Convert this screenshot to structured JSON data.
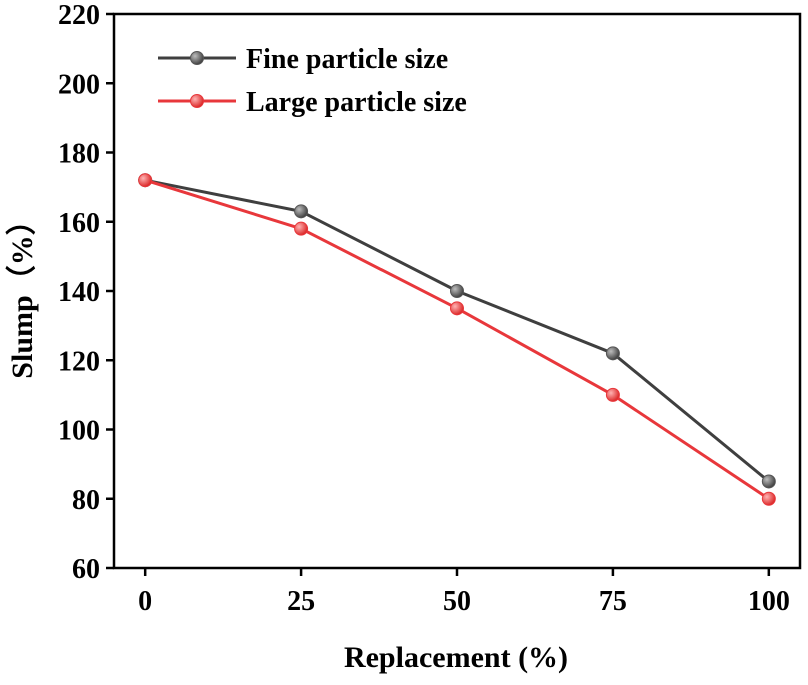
{
  "chart_data": {
    "type": "line",
    "title": "",
    "xlabel": "Replacement (%)",
    "ylabel": "Slump（%）",
    "x": [
      0,
      25,
      50,
      75,
      100
    ],
    "x_tick_labels": [
      "0",
      "25",
      "50",
      "75",
      "100"
    ],
    "y_ticks": [
      60,
      80,
      100,
      120,
      140,
      160,
      180,
      200,
      220
    ],
    "y_tick_labels": [
      "60",
      "80",
      "100",
      "120",
      "140",
      "160",
      "180",
      "200",
      "220"
    ],
    "xlim": [
      -5,
      105
    ],
    "ylim": [
      60,
      220
    ],
    "grid": false,
    "legend_position": "top-left",
    "series": [
      {
        "name": "Fine particle size",
        "values": [
          172,
          163,
          140,
          122,
          85
        ],
        "line_color": "#3f3f3f",
        "marker_color": "#555555"
      },
      {
        "name": "Large particle size",
        "values": [
          172,
          158,
          135,
          110,
          80
        ],
        "line_color": "#e8373b",
        "marker_color": "#e8373b"
      }
    ]
  }
}
